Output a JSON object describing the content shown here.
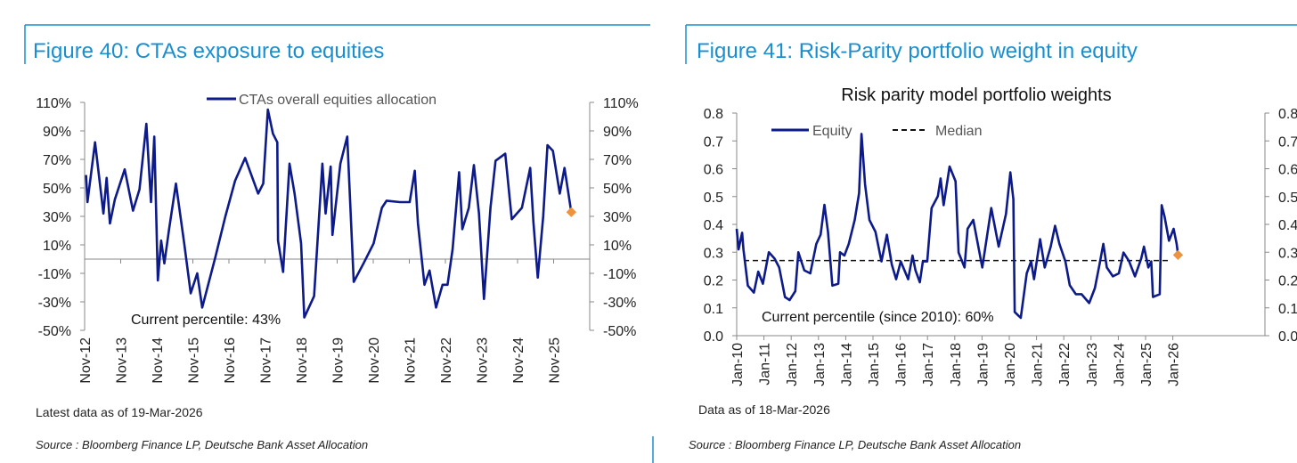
{
  "colors": {
    "accent": "#1a8fd0",
    "series": "#0d1a8a",
    "marker": "#f0923a",
    "axis": "#888888"
  },
  "chart_data": [
    {
      "type": "line",
      "figure_title": "Figure 40: CTAs exposure to equities",
      "title": "",
      "ylabel": "",
      "xlabel": "",
      "ylim": [
        -50,
        110
      ],
      "y_ticks": [
        "110%",
        "90%",
        "70%",
        "50%",
        "30%",
        "10%",
        "-10%",
        "-30%",
        "-50%"
      ],
      "y_tick_values": [
        110,
        90,
        70,
        50,
        30,
        10,
        -10,
        -30,
        -50
      ],
      "x_ticks": [
        "Nov-12",
        "Nov-13",
        "Nov-14",
        "Nov-15",
        "Nov-16",
        "Nov-17",
        "Nov-18",
        "Nov-19",
        "Nov-20",
        "Nov-21",
        "Nov-22",
        "Nov-23",
        "Nov-24",
        "Nov-25"
      ],
      "x_tick_values": [
        2012.83,
        2013.83,
        2014.83,
        2015.83,
        2016.83,
        2017.83,
        2018.83,
        2019.83,
        2020.83,
        2021.83,
        2022.83,
        2023.83,
        2024.83,
        2025.83
      ],
      "legend": "top-center",
      "series": [
        {
          "name": "CTAs overall equities allocation",
          "x": [
            2012.87,
            2012.91,
            2013.12,
            2013.35,
            2013.44,
            2013.53,
            2013.67,
            2013.94,
            2014.17,
            2014.35,
            2014.54,
            2014.67,
            2014.76,
            2014.86,
            2014.95,
            2015.04,
            2015.17,
            2015.36,
            2015.59,
            2015.77,
            2015.95,
            2016.09,
            2016.45,
            2016.73,
            2017.0,
            2017.28,
            2017.64,
            2017.78,
            2017.91,
            2018.05,
            2018.17,
            2018.19,
            2018.33,
            2018.51,
            2018.65,
            2018.83,
            2018.92,
            2019.19,
            2019.42,
            2019.51,
            2019.65,
            2019.7,
            2019.92,
            2020.11,
            2020.29,
            2020.56,
            2020.84,
            2021.07,
            2021.2,
            2021.57,
            2021.84,
            2021.98,
            2022.07,
            2022.25,
            2022.39,
            2022.57,
            2022.75,
            2022.89,
            2023.03,
            2023.21,
            2023.3,
            2023.48,
            2023.62,
            2023.76,
            2023.9,
            2024.08,
            2024.22,
            2024.49,
            2024.67,
            2024.95,
            2025.18,
            2025.27,
            2025.39,
            2025.54,
            2025.66,
            2025.81,
            2026.0,
            2026.13,
            2026.32
          ],
          "y": [
            59,
            40,
            82,
            32,
            57,
            25,
            42,
            63,
            34,
            49,
            95,
            40,
            86,
            -15,
            13,
            -3,
            21,
            53,
            11,
            -24,
            -10,
            -34,
            1,
            30,
            55,
            71,
            46,
            53,
            105,
            88,
            82,
            13,
            -9,
            67,
            46,
            11,
            -41,
            -26,
            67,
            32,
            65,
            17,
            67,
            86,
            -16,
            -3,
            11,
            36,
            41,
            40,
            40,
            62,
            25,
            -18,
            -8,
            -34,
            -18,
            -18,
            7,
            61,
            21,
            36,
            66,
            32,
            -28,
            36,
            69,
            74,
            28,
            36,
            64,
            26,
            -13,
            30,
            80,
            76,
            46,
            64,
            33
          ]
        }
      ],
      "last_point": {
        "x": 2026.32,
        "y": 33
      },
      "zero_line": true,
      "annotation": "Current percentile: 43%",
      "footnote": "Latest data as of 19-Mar-2026",
      "source": "Source : Bloomberg Finance LP, Deutsche Bank Asset Allocation"
    },
    {
      "type": "line",
      "figure_title": "Figure 41: Risk-Parity portfolio weight in equity",
      "title": "Risk parity model portfolio weights",
      "ylabel": "",
      "xlabel": "",
      "ylim": [
        0,
        0.8
      ],
      "y_ticks": [
        "0.8",
        "0.7",
        "0.6",
        "0.5",
        "0.4",
        "0.3",
        "0.2",
        "0.1",
        "0.0"
      ],
      "y_tick_values": [
        0.8,
        0.7,
        0.6,
        0.5,
        0.4,
        0.3,
        0.2,
        0.1,
        0.0
      ],
      "x_ticks": [
        "Jan-10",
        "Jan-11",
        "Jan-12",
        "Jan-13",
        "Jan-14",
        "Jan-15",
        "Jan-16",
        "Jan-17",
        "Jan-18",
        "Jan-19",
        "Jan-20",
        "Jan-21",
        "Jan-22",
        "Jan-23",
        "Jan-24",
        "Jan-25",
        "Jan-26"
      ],
      "x_tick_values": [
        2010,
        2011,
        2012,
        2013,
        2014,
        2015,
        2016,
        2017,
        2018,
        2019,
        2020,
        2021,
        2022,
        2023,
        2024,
        2025,
        2026
      ],
      "legend": "top-left",
      "series": [
        {
          "name": "Equity",
          "x": [
            2010.0,
            2010.07,
            2010.2,
            2010.25,
            2010.41,
            2010.63,
            2010.79,
            2010.96,
            2011.18,
            2011.39,
            2011.56,
            2011.77,
            2011.94,
            2012.15,
            2012.26,
            2012.48,
            2012.7,
            2012.92,
            2013.08,
            2013.22,
            2013.35,
            2013.51,
            2013.73,
            2013.79,
            2013.95,
            2014.11,
            2014.33,
            2014.49,
            2014.58,
            2014.71,
            2014.87,
            2015.09,
            2015.31,
            2015.51,
            2015.69,
            2015.85,
            2016.02,
            2016.29,
            2016.45,
            2016.56,
            2016.72,
            2016.83,
            2016.99,
            2017.15,
            2017.38,
            2017.48,
            2017.59,
            2017.81,
            2018.03,
            2018.14,
            2018.36,
            2018.47,
            2018.68,
            2019.01,
            2019.34,
            2019.61,
            2019.88,
            2020.04,
            2020.15,
            2020.2,
            2020.42,
            2020.64,
            2020.8,
            2020.91,
            2021.13,
            2021.3,
            2021.52,
            2021.68,
            2021.84,
            2022.06,
            2022.22,
            2022.44,
            2022.65,
            2022.93,
            2023.14,
            2023.31,
            2023.45,
            2023.58,
            2023.8,
            2024.02,
            2024.19,
            2024.4,
            2024.61,
            2024.84,
            2024.94,
            2025.1,
            2025.21,
            2025.27,
            2025.52,
            2025.59,
            2025.7,
            2025.86,
            2026.03,
            2026.14,
            2026.19
          ],
          "y": [
            0.384,
            0.31,
            0.37,
            0.31,
            0.18,
            0.155,
            0.23,
            0.187,
            0.3,
            0.277,
            0.245,
            0.139,
            0.128,
            0.16,
            0.3,
            0.235,
            0.224,
            0.33,
            0.363,
            0.47,
            0.373,
            0.18,
            0.187,
            0.3,
            0.288,
            0.33,
            0.416,
            0.512,
            0.725,
            0.544,
            0.416,
            0.373,
            0.267,
            0.363,
            0.256,
            0.203,
            0.267,
            0.203,
            0.288,
            0.235,
            0.192,
            0.267,
            0.267,
            0.459,
            0.501,
            0.565,
            0.469,
            0.608,
            0.555,
            0.299,
            0.245,
            0.384,
            0.416,
            0.245,
            0.459,
            0.32,
            0.437,
            0.587,
            0.49,
            0.085,
            0.064,
            0.224,
            0.267,
            0.203,
            0.347,
            0.245,
            0.32,
            0.395,
            0.33,
            0.267,
            0.181,
            0.149,
            0.149,
            0.117,
            0.171,
            0.256,
            0.33,
            0.245,
            0.213,
            0.224,
            0.299,
            0.267,
            0.213,
            0.277,
            0.32,
            0.245,
            0.267,
            0.139,
            0.149,
            0.469,
            0.427,
            0.341,
            0.384,
            0.33,
            0.293
          ]
        },
        {
          "name": "Median",
          "value": 0.27
        }
      ],
      "last_point": {
        "x": 2026.19,
        "y": 0.29
      },
      "annotation": "Current percentile (since 2010): 60%",
      "footnote": "Data as of 18-Mar-2026",
      "source": "Source : Bloomberg Finance LP, Deutsche Bank Asset Allocation"
    }
  ]
}
